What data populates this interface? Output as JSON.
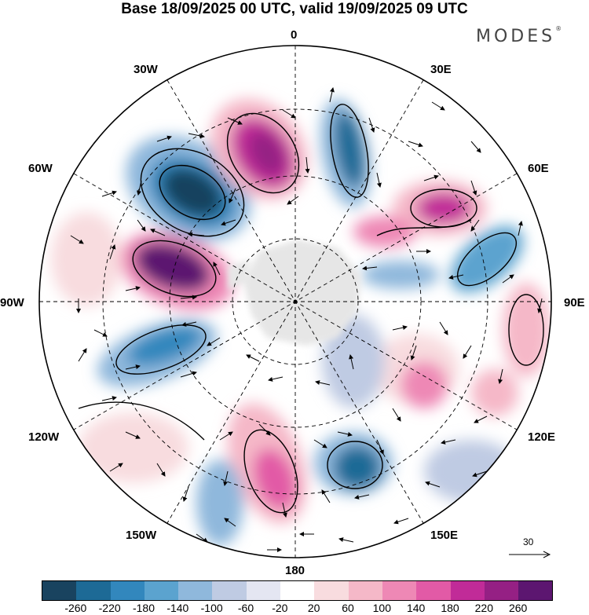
{
  "header": {
    "title": "Base 18/09/2025 00 UTC, valid 19/09/2025 09 UTC",
    "logo": "MODES",
    "logo_mark": "®"
  },
  "map": {
    "projection": "south-polar-stereographic",
    "longitude_labels": {
      "top": "0",
      "top_right": "30E",
      "right_upper": "60E",
      "right": "90E",
      "right_lower": "120E",
      "bottom_right": "150E",
      "bottom": "180",
      "bottom_left": "150W",
      "left_lower": "120W",
      "left": "90W",
      "left_upper": "60W",
      "top_left": "30W"
    },
    "wind_reference_vector": "30"
  },
  "legend": {
    "colors": [
      "#19435f",
      "#1d6a96",
      "#3287bd",
      "#5ba3cf",
      "#8fb8dc",
      "#bfcbe3",
      "#e4e6f2",
      "#ffffff",
      "#f8dcdf",
      "#f5b8c8",
      "#ee88b5",
      "#e25aa6",
      "#c12b98",
      "#952084",
      "#5c1670"
    ],
    "tick_labels": [
      "-260",
      "-220",
      "-180",
      "-140",
      "-100",
      "-60",
      "-20",
      "20",
      "60",
      "100",
      "140",
      "180",
      "220",
      "260"
    ]
  }
}
